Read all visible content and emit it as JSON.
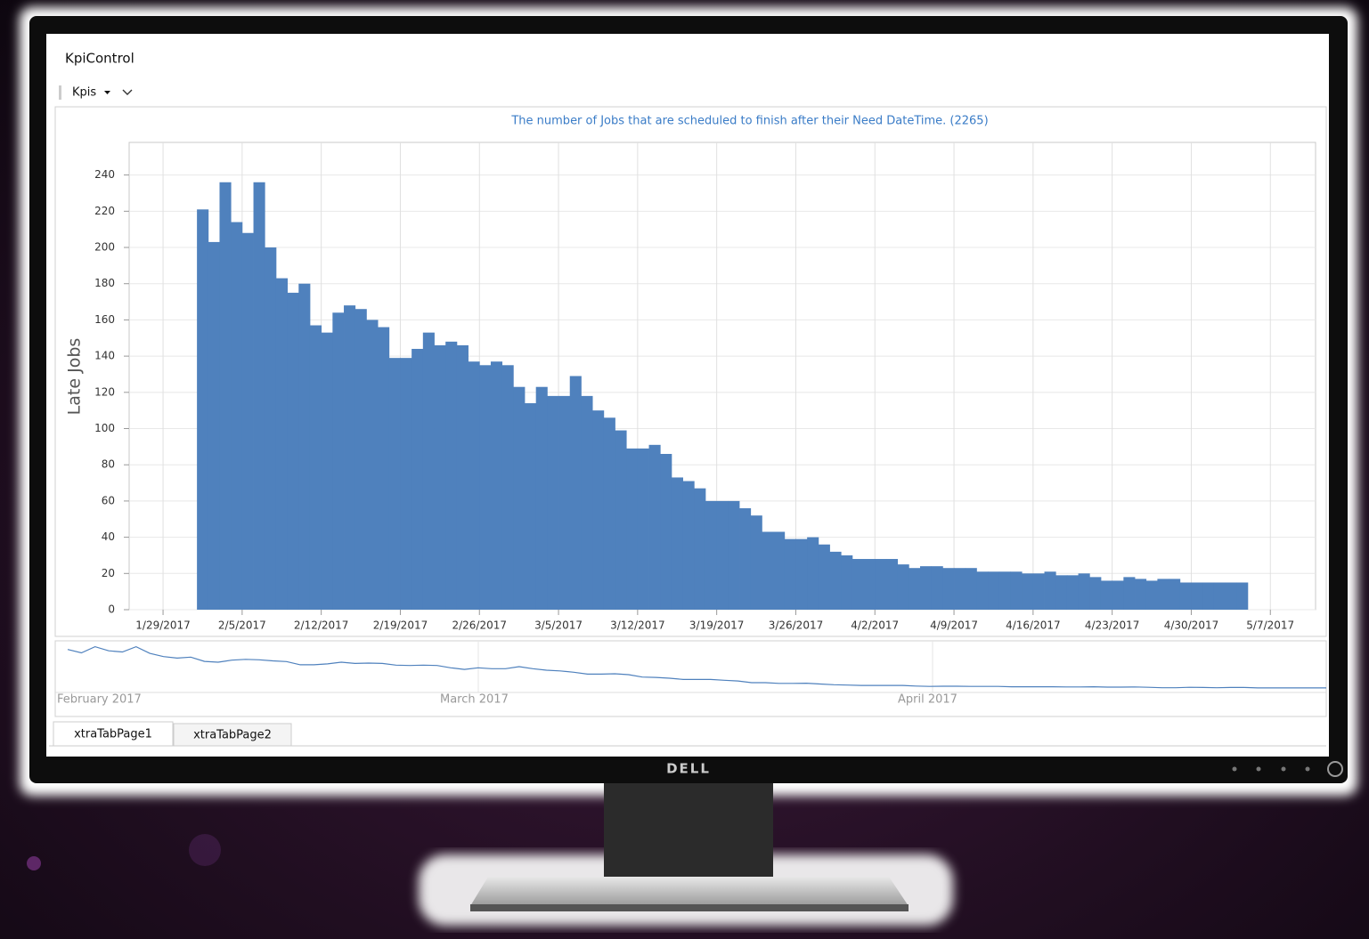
{
  "window": {
    "title": "KpiControl",
    "menu": "Kpis",
    "brand": "DELL"
  },
  "chart_data": {
    "type": "bar",
    "title": "The number of Jobs that are scheduled to finish after their Need DateTime. (2265)",
    "y_label": "Late Jobs",
    "x": [
      "2/1/2017",
      "2/2/2017",
      "2/3/2017",
      "2/4/2017",
      "2/5/2017",
      "2/6/2017",
      "2/7/2017",
      "2/8/2017",
      "2/9/2017",
      "2/10/2017",
      "2/11/2017",
      "2/12/2017",
      "2/13/2017",
      "2/14/2017",
      "2/15/2017",
      "2/16/2017",
      "2/17/2017",
      "2/18/2017",
      "2/19/2017",
      "2/20/2017",
      "2/21/2017",
      "2/22/2017",
      "2/23/2017",
      "2/24/2017",
      "2/25/2017",
      "2/26/2017",
      "2/27/2017",
      "2/28/2017",
      "3/1/2017",
      "3/2/2017",
      "3/3/2017",
      "3/4/2017",
      "3/5/2017",
      "3/6/2017",
      "3/7/2017",
      "3/8/2017",
      "3/9/2017",
      "3/10/2017",
      "3/11/2017",
      "3/12/2017",
      "3/13/2017",
      "3/14/2017",
      "3/15/2017",
      "3/16/2017",
      "3/17/2017",
      "3/18/2017",
      "3/19/2017",
      "3/20/2017",
      "3/21/2017",
      "3/22/2017",
      "3/23/2017",
      "3/24/2017",
      "3/25/2017",
      "3/26/2017",
      "3/27/2017",
      "3/28/2017",
      "3/29/2017",
      "3/30/2017",
      "3/31/2017",
      "4/1/2017",
      "4/2/2017",
      "4/3/2017",
      "4/4/2017",
      "4/5/2017",
      "4/6/2017",
      "4/7/2017",
      "4/8/2017",
      "4/9/2017",
      "4/10/2017",
      "4/11/2017",
      "4/12/2017",
      "4/13/2017",
      "4/14/2017",
      "4/15/2017",
      "4/16/2017",
      "4/17/2017",
      "4/18/2017",
      "4/19/2017",
      "4/20/2017",
      "4/21/2017",
      "4/22/2017",
      "4/23/2017",
      "4/24/2017",
      "4/25/2017",
      "4/26/2017",
      "4/27/2017",
      "4/28/2017",
      "4/29/2017",
      "4/30/2017",
      "5/1/2017",
      "5/2/2017",
      "5/3/2017",
      "5/4/2017"
    ],
    "values": [
      221,
      203,
      236,
      214,
      208,
      236,
      200,
      183,
      175,
      180,
      157,
      153,
      164,
      168,
      166,
      160,
      156,
      139,
      139,
      144,
      153,
      146,
      148,
      146,
      137,
      135,
      137,
      135,
      123,
      114,
      123,
      118,
      118,
      129,
      118,
      110,
      106,
      99,
      89,
      89,
      91,
      86,
      73,
      71,
      67,
      60,
      60,
      60,
      56,
      52,
      43,
      43,
      39,
      39,
      40,
      36,
      32,
      30,
      28,
      28,
      28,
      28,
      25,
      23,
      24,
      24,
      23,
      23,
      23,
      21,
      21,
      21,
      21,
      20,
      20,
      21,
      19,
      19,
      20,
      18,
      16,
      16,
      18,
      17,
      16,
      17,
      17,
      15,
      15,
      15,
      15,
      15,
      15
    ],
    "color": "#4f81bd",
    "xlim": [
      "1/26/2017",
      "5/11/2017"
    ],
    "xticks": [
      "1/29/2017",
      "2/5/2017",
      "2/12/2017",
      "2/19/2017",
      "2/26/2017",
      "3/5/2017",
      "3/12/2017",
      "3/19/2017",
      "3/26/2017",
      "4/2/2017",
      "4/9/2017",
      "4/16/2017",
      "4/23/2017",
      "4/30/2017",
      "5/7/2017"
    ],
    "ylim": [
      0,
      258
    ],
    "yticks": [
      0,
      20,
      40,
      60,
      80,
      100,
      120,
      140,
      160,
      180,
      200,
      220,
      240
    ],
    "grid": true
  },
  "navigator": {
    "labels": [
      "February 2017",
      "March 2017",
      "April 2017"
    ]
  },
  "tabs": [
    "xtraTabPage1",
    "xtraTabPage2"
  ]
}
